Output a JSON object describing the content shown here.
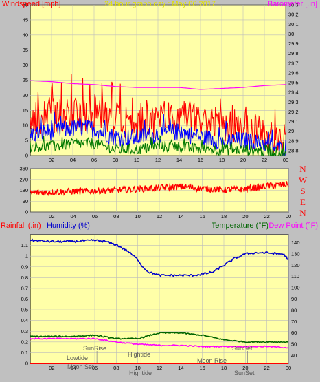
{
  "header": {
    "left": "Windspeed [mph]",
    "center": "24 hour graph day : May 06 2017",
    "right": "Barometer [.in]"
  },
  "colors": {
    "plot_bg": "#ffffa8",
    "frame_bg": "#c0c0c0",
    "grid": "#bcbcbc",
    "wind_gust": "#ff0000",
    "wind_avg": "#0000ff",
    "wind_low": "#007800",
    "barometer": "#ff00ff",
    "direction": "#ff0000",
    "humidity": "#0000cc",
    "temperature": "#006400",
    "dewpoint": "#ff00ff",
    "title_yellow": "#e0e000",
    "rain": "#ff0000"
  },
  "bottom_header": {
    "rainfall": "Rainfall (.in)",
    "humidity": "Humidity (%)",
    "temperature": "Temperature (°F)",
    "dewpoint": "Dew Point (°F)"
  },
  "compass": [
    "N",
    "W",
    "S",
    "E",
    "N"
  ],
  "annotations": [
    "Lowtide",
    "SunRise",
    "Moon Set",
    "Hightide",
    "Hightide",
    "SunSet",
    "Moon Rise",
    "SunSet"
  ],
  "chart_data": [
    {
      "type": "line",
      "title": "24 hour graph day : May 06 2017",
      "x_ticks": [
        "02",
        "04",
        "06",
        "08",
        "10",
        "12",
        "14",
        "16",
        "18",
        "20",
        "22",
        "00"
      ],
      "xlim": [
        0,
        24
      ],
      "ylabel": "Windspeed [mph]",
      "ylim": [
        0,
        50
      ],
      "y_ticks": [
        0,
        5,
        10,
        15,
        20,
        25,
        30,
        35,
        40,
        45,
        50
      ],
      "y2label": "Barometer [.in]",
      "y2lim": [
        28.75,
        30.3
      ],
      "y2_ticks": [
        28.8,
        28.9,
        29,
        29.1,
        29.2,
        29.3,
        29.4,
        29.5,
        29.6,
        29.7,
        29.8,
        29.9,
        30,
        30.1,
        30.2,
        30.3
      ],
      "grid": true,
      "series": [
        {
          "name": "Windspeed",
          "color": "#ff0000",
          "x": [
            0,
            2,
            4,
            6,
            8,
            10,
            12,
            14,
            16,
            18,
            20,
            22,
            23.5,
            24
          ],
          "y": [
            12,
            13,
            14,
            14,
            12,
            10,
            12,
            13,
            11,
            10,
            9,
            7,
            4,
            6
          ],
          "spread": 8
        },
        {
          "name": "Average",
          "color": "#0000ff",
          "x": [
            0,
            2,
            4,
            6,
            8,
            10,
            12,
            14,
            16,
            18,
            20,
            22,
            23.5,
            24
          ],
          "y": [
            7,
            8,
            9,
            9,
            6,
            6,
            7,
            8,
            6,
            5,
            5,
            4,
            2,
            3
          ],
          "spread": 4
        },
        {
          "name": "Low",
          "color": "#007800",
          "x": [
            0,
            2,
            4,
            6,
            8,
            10,
            12,
            14,
            16,
            18,
            20,
            22,
            23.5,
            24
          ],
          "y": [
            3,
            3,
            4,
            4,
            2,
            2,
            3,
            3,
            2,
            2,
            2,
            1.5,
            1,
            1
          ],
          "spread": 2.5
        },
        {
          "name": "Barometer",
          "color": "#ff00ff",
          "axis": "y2",
          "x": [
            0,
            2,
            4,
            6,
            8,
            10,
            12,
            14,
            16,
            18,
            20,
            22,
            24
          ],
          "y": [
            29.52,
            29.51,
            29.49,
            29.48,
            29.46,
            29.45,
            29.45,
            29.45,
            29.43,
            29.44,
            29.45,
            29.47,
            29.48
          ]
        }
      ]
    },
    {
      "type": "scatter",
      "x_ticks": [
        "02",
        "04",
        "06",
        "08",
        "10",
        "12",
        "14",
        "16",
        "18",
        "20",
        "22",
        "00"
      ],
      "xlim": [
        0,
        24
      ],
      "ylim": [
        0,
        360
      ],
      "y_ticks": [
        0,
        90,
        180,
        270,
        360
      ],
      "grid": true,
      "series": [
        {
          "name": "Wind direction",
          "color": "#ff0000",
          "x": [
            0,
            2,
            4,
            6,
            8,
            10,
            12,
            14,
            16,
            18,
            20,
            22,
            24
          ],
          "y": [
            160,
            165,
            170,
            175,
            180,
            190,
            200,
            210,
            195,
            185,
            190,
            215,
            230
          ],
          "spread": 45
        }
      ]
    },
    {
      "type": "line",
      "x_ticks": [
        "02",
        "04",
        "06",
        "08",
        "10",
        "12",
        "14",
        "16",
        "18",
        "20",
        "22",
        "00"
      ],
      "xlim": [
        0,
        24
      ],
      "ylabel": "Rainfall (.in)",
      "ylim": [
        0,
        1.2
      ],
      "y_ticks": [
        0,
        0.1,
        0.2,
        0.3,
        0.4,
        0.5,
        0.6,
        0.7,
        0.8,
        0.9,
        1,
        1.1
      ],
      "y2label": "Temperature (°F)",
      "y2lim": [
        33,
        147
      ],
      "y2_ticks": [
        40,
        50,
        60,
        70,
        80,
        90,
        100,
        110,
        120,
        130,
        140
      ],
      "grid": true,
      "series": [
        {
          "name": "Humidity",
          "color": "#0000cc",
          "axis": "y2",
          "x": [
            0,
            2,
            4,
            6,
            7,
            8,
            9,
            10,
            10.5,
            11,
            12,
            13,
            14,
            15,
            16,
            17,
            18,
            19,
            20,
            21,
            22,
            23,
            23.5,
            24
          ],
          "y": [
            142,
            141,
            141,
            142,
            141,
            138,
            133,
            125,
            118,
            114,
            111,
            111,
            111,
            111,
            112,
            114,
            120,
            126,
            130,
            131,
            131,
            130,
            130,
            125
          ]
        },
        {
          "name": "Temperature",
          "color": "#006400",
          "axis": "y2",
          "x": [
            0,
            2,
            4,
            6,
            8,
            10,
            12,
            14,
            16,
            18,
            20,
            22,
            24
          ],
          "y": [
            57,
            57,
            57,
            58,
            55,
            55,
            60,
            60,
            58,
            54,
            52,
            52,
            52
          ]
        },
        {
          "name": "Dew Point",
          "color": "#ff00ff",
          "axis": "y2",
          "x": [
            0,
            2,
            4,
            6,
            8,
            10,
            12,
            14,
            16,
            18,
            20,
            22,
            24
          ],
          "y": [
            55,
            55,
            55,
            55,
            52,
            50,
            49,
            49,
            48,
            48,
            48,
            48,
            47
          ]
        },
        {
          "name": "Rainfall",
          "color": "#ff0000",
          "x": [
            0,
            24
          ],
          "y": [
            0,
            0
          ]
        }
      ]
    }
  ]
}
